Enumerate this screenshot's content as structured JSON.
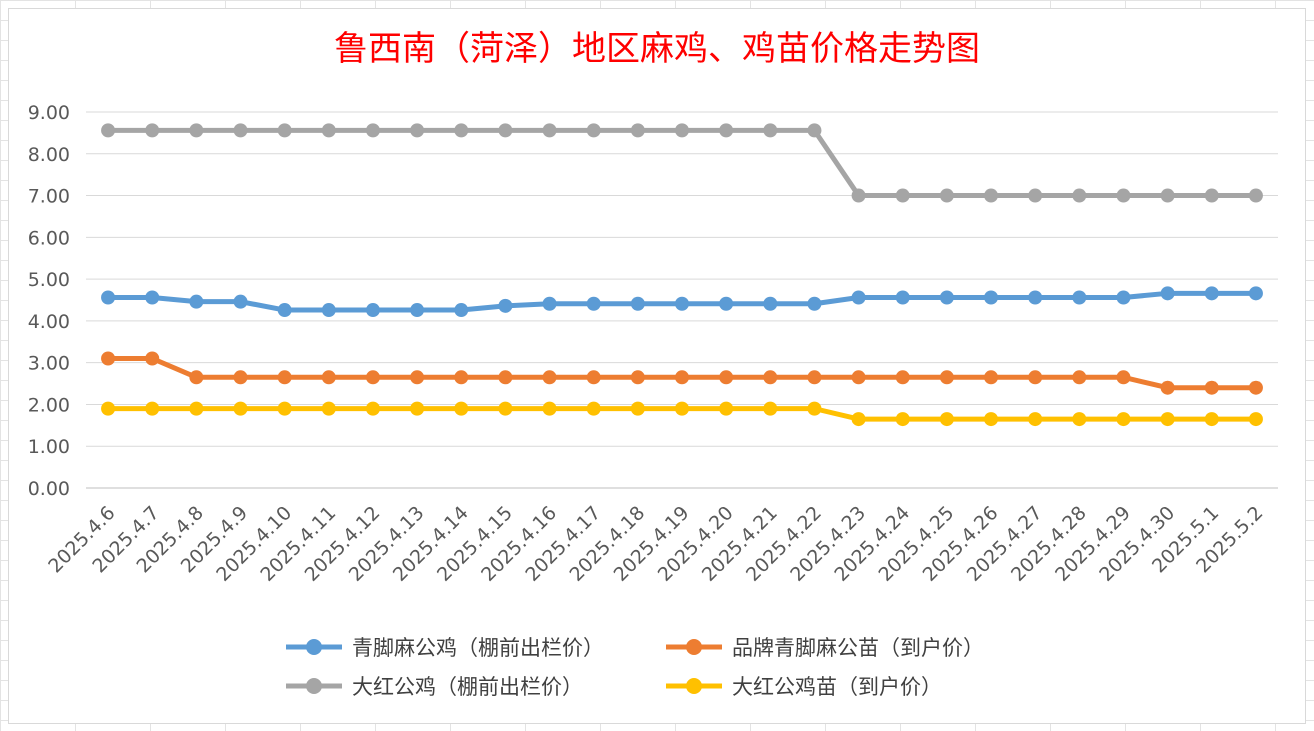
{
  "chart_data": {
    "type": "line",
    "title": "鲁西南（菏泽）地区麻鸡、鸡苗价格走势图",
    "xlabel": "",
    "ylabel": "",
    "ylim": [
      0,
      9
    ],
    "y_ticks": [
      "0.00",
      "1.00",
      "2.00",
      "3.00",
      "4.00",
      "5.00",
      "6.00",
      "7.00",
      "8.00",
      "9.00"
    ],
    "grid": true,
    "legend_position": "bottom",
    "categories": [
      "2025.4.6",
      "2025.4.7",
      "2025.4.8",
      "2025.4.9",
      "2025.4.10",
      "2025.4.11",
      "2025.4.12",
      "2025.4.13",
      "2025.4.14",
      "2025.4.15",
      "2025.4.16",
      "2025.4.17",
      "2025.4.18",
      "2025.4.19",
      "2025.4.20",
      "2025.4.21",
      "2025.4.22",
      "2025.4.23",
      "2025.4.24",
      "2025.4.25",
      "2025.4.26",
      "2025.4.27",
      "2025.4.28",
      "2025.4.29",
      "2025.4.30",
      "2025.5.1",
      "2025.5.2"
    ],
    "series": [
      {
        "name": "青脚麻公鸡（棚前出栏价）",
        "color": "#5b9bd5",
        "values": [
          4.56,
          4.56,
          4.46,
          4.46,
          4.26,
          4.26,
          4.26,
          4.26,
          4.26,
          4.36,
          4.41,
          4.41,
          4.41,
          4.41,
          4.41,
          4.41,
          4.41,
          4.56,
          4.56,
          4.56,
          4.56,
          4.56,
          4.56,
          4.56,
          4.66,
          4.66,
          4.66
        ]
      },
      {
        "name": "品牌青脚麻公苗（到户价）",
        "color": "#ed7d31",
        "values": [
          3.1,
          3.1,
          2.65,
          2.65,
          2.65,
          2.65,
          2.65,
          2.65,
          2.65,
          2.65,
          2.65,
          2.65,
          2.65,
          2.65,
          2.65,
          2.65,
          2.65,
          2.65,
          2.65,
          2.65,
          2.65,
          2.65,
          2.65,
          2.65,
          2.4,
          2.4,
          2.4
        ]
      },
      {
        "name": "大红公鸡（棚前出栏价）",
        "color": "#a5a5a5",
        "values": [
          8.56,
          8.56,
          8.56,
          8.56,
          8.56,
          8.56,
          8.56,
          8.56,
          8.56,
          8.56,
          8.56,
          8.56,
          8.56,
          8.56,
          8.56,
          8.56,
          8.56,
          7.0,
          7.0,
          7.0,
          7.0,
          7.0,
          7.0,
          7.0,
          7.0,
          7.0,
          7.0
        ]
      },
      {
        "name": "大红公鸡苗（到户价）",
        "color": "#ffc000",
        "values": [
          1.9,
          1.9,
          1.9,
          1.9,
          1.9,
          1.9,
          1.9,
          1.9,
          1.9,
          1.9,
          1.9,
          1.9,
          1.9,
          1.9,
          1.9,
          1.9,
          1.9,
          1.65,
          1.65,
          1.65,
          1.65,
          1.65,
          1.65,
          1.65,
          1.65,
          1.65,
          1.65
        ]
      }
    ]
  }
}
